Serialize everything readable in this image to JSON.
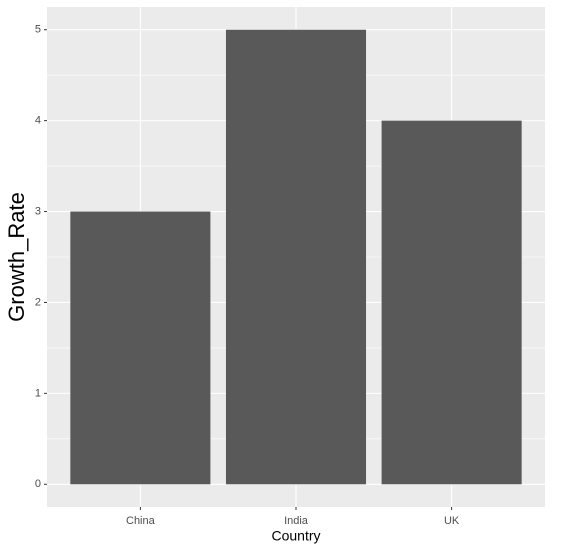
{
  "chart_data": {
    "type": "bar",
    "x_label": "Country",
    "y_label": "Growth_Rate",
    "categories": [
      "China",
      "India",
      "UK"
    ],
    "values": [
      3,
      5,
      4
    ],
    "color": "#595959",
    "ylim": [
      -0.25,
      5.25
    ],
    "yticks": [
      0,
      1,
      2,
      3,
      4,
      5
    ],
    "grid": true
  }
}
